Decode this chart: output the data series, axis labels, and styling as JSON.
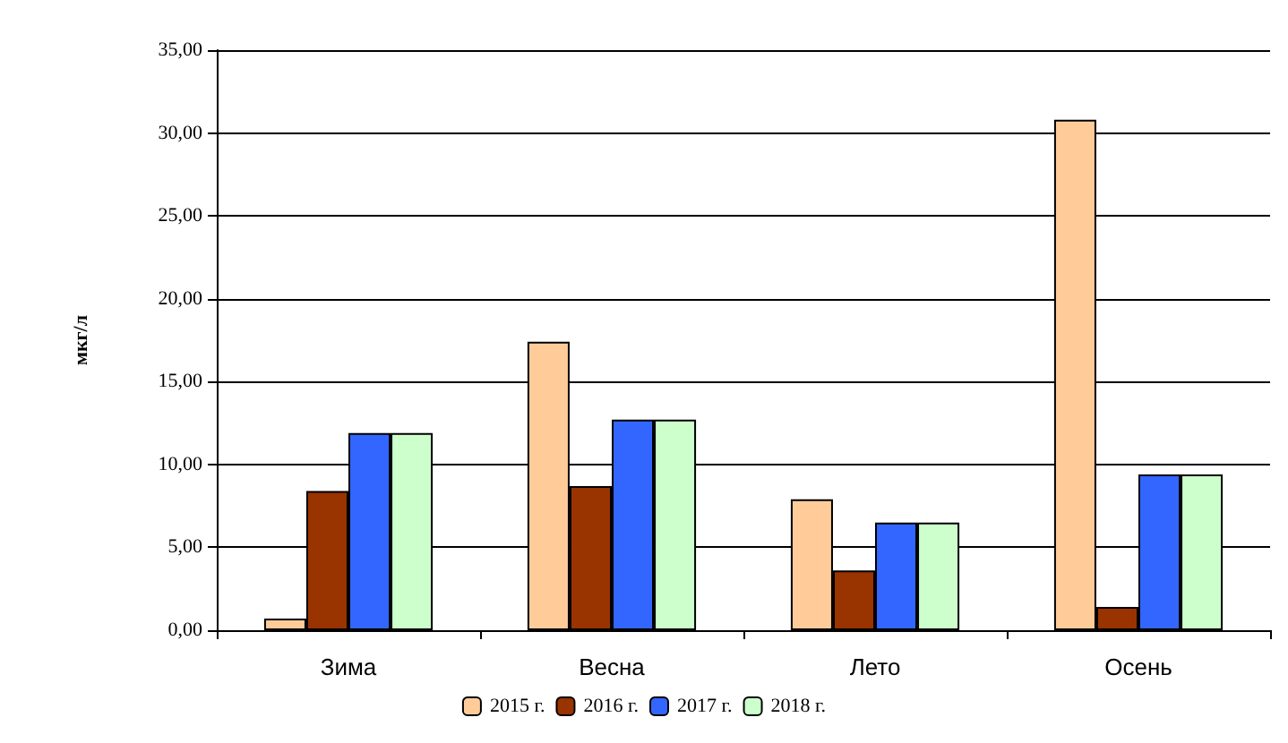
{
  "chart_data": {
    "type": "bar",
    "ylabel": "мкг/л",
    "categories": [
      "Зима",
      "Весна",
      "Лето",
      "Осень"
    ],
    "series": [
      {
        "name": "2015 г.",
        "color": "#ffcc99",
        "values": [
          0.7,
          17.4,
          7.9,
          30.8
        ]
      },
      {
        "name": "2016 г.",
        "color": "#993300",
        "values": [
          8.4,
          8.7,
          3.6,
          1.4
        ]
      },
      {
        "name": "2017 г.",
        "color": "#3366ff",
        "values": [
          11.9,
          12.7,
          6.5,
          9.4
        ]
      },
      {
        "name": "2018 г.",
        "color": "#ccffcc",
        "values": [
          11.9,
          12.7,
          6.5,
          9.4
        ]
      }
    ],
    "ylim": [
      0,
      35
    ],
    "yticks": [
      {
        "value": 0,
        "label": "0,00"
      },
      {
        "value": 5,
        "label": "5,00"
      },
      {
        "value": 10,
        "label": "10,00"
      },
      {
        "value": 15,
        "label": "15,00"
      },
      {
        "value": 20,
        "label": "20,00"
      },
      {
        "value": 25,
        "label": "25,00"
      },
      {
        "value": 30,
        "label": "30,00"
      },
      {
        "value": 35,
        "label": "35,00"
      }
    ],
    "grid": "y",
    "legend": "bottom"
  }
}
